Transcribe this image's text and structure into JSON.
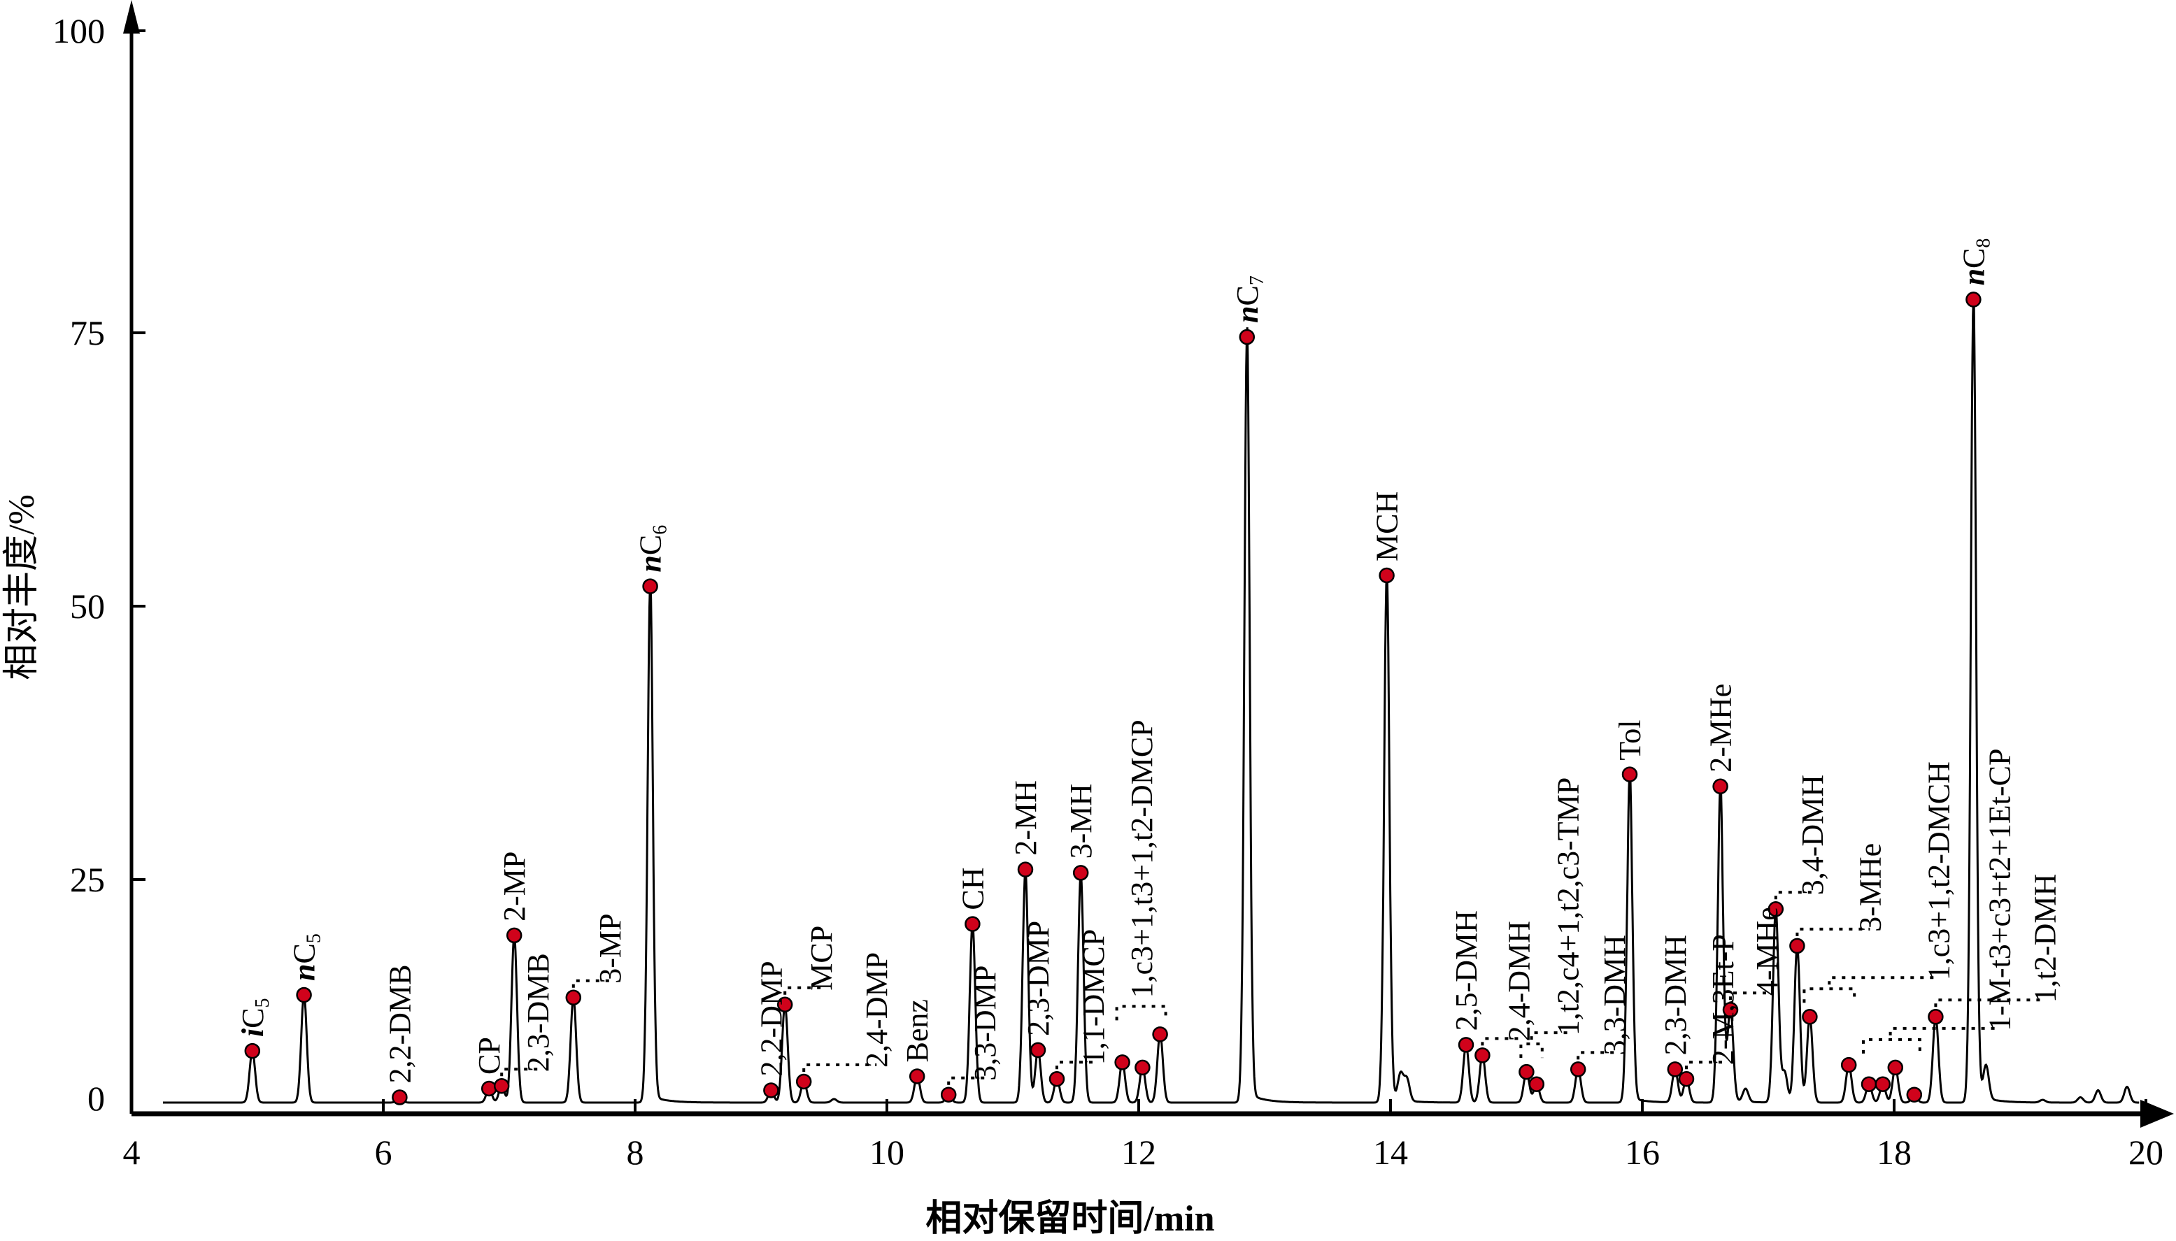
{
  "chart_data": {
    "type": "line",
    "title": "",
    "xlabel": "相对保留时间/min",
    "ylabel": "相对丰度/%",
    "xlim": [
      4,
      20
    ],
    "ylim": [
      0,
      100
    ],
    "x_ticks": [
      4,
      6,
      8,
      10,
      12,
      14,
      16,
      18,
      20
    ],
    "y_ticks": [
      0,
      25,
      50,
      75,
      100
    ],
    "grid": false,
    "marker_color": "#d0021b",
    "line_color": "#000000",
    "peaks": [
      {
        "name": "iC5",
        "time": 4.96,
        "value": 5.9
      },
      {
        "name": "nC5",
        "time": 5.37,
        "value": 12.3
      },
      {
        "name": "2,2-DMB",
        "time": 6.13,
        "value": 0.6
      },
      {
        "name": "CP",
        "time": 6.84,
        "value": 1.6
      },
      {
        "name": "2,3-DMB",
        "time": 6.94,
        "value": 1.9
      },
      {
        "name": "2-MP",
        "time": 7.04,
        "value": 19.1
      },
      {
        "name": "3-MP",
        "time": 7.51,
        "value": 12.0
      },
      {
        "name": "nC6",
        "time": 8.12,
        "value": 52.2
      },
      {
        "name": "2,2-DMP",
        "time": 9.08,
        "value": 1.4
      },
      {
        "name": "MCP",
        "time": 9.19,
        "value": 11.2
      },
      {
        "name": "2,4-DMP",
        "time": 9.34,
        "value": 2.4
      },
      {
        "name": "Benz",
        "time": 10.24,
        "value": 3.0
      },
      {
        "name": "3,3-DMP",
        "time": 10.49,
        "value": 0.9
      },
      {
        "name": "CH",
        "time": 10.68,
        "value": 20.4
      },
      {
        "name": "2-MH",
        "time": 11.1,
        "value": 26.3
      },
      {
        "name": "2,3-DMP",
        "time": 11.2,
        "value": 6.0
      },
      {
        "name": "1,1-DMCP",
        "time": 11.35,
        "value": 2.7
      },
      {
        "name": "3-MH",
        "time": 11.54,
        "value": 26.0
      },
      {
        "name": "1,c3-DMCP",
        "time": 11.87,
        "value": 4.6
      },
      {
        "name": "1,t3-DMCP",
        "time": 12.03,
        "value": 4.0
      },
      {
        "name": "1,t2-DMCP",
        "time": 12.17,
        "value": 7.8
      },
      {
        "name": "nC7",
        "time": 12.86,
        "value": 75.0
      },
      {
        "name": "MCH",
        "time": 13.97,
        "value": 53.2
      },
      {
        "name": "2,5-DMH",
        "time": 14.6,
        "value": 6.6
      },
      {
        "name": "2,4-DMH",
        "time": 14.73,
        "value": 5.4
      },
      {
        "name": "1,t2,c4-TMP",
        "time": 15.08,
        "value": 3.5
      },
      {
        "name": "1,t2,c3-TMP",
        "time": 15.16,
        "value": 2.1
      },
      {
        "name": "3,3-DMH",
        "time": 15.49,
        "value": 3.8
      },
      {
        "name": "Tol",
        "time": 15.9,
        "value": 35.0
      },
      {
        "name": "2,3-DMH",
        "time": 16.26,
        "value": 3.8
      },
      {
        "name": "2-M,3Et-P",
        "time": 16.35,
        "value": 2.7
      },
      {
        "name": "2-MHe",
        "time": 16.62,
        "value": 33.9
      },
      {
        "name": "4-MHe",
        "time": 16.7,
        "value": 10.6
      },
      {
        "name": "3,4-DMH",
        "time": 17.06,
        "value": 22.1
      },
      {
        "name": "3-MHe",
        "time": 17.23,
        "value": 17.9
      },
      {
        "name": "1,c3-DMCH",
        "time": 17.33,
        "value": 9.8
      },
      {
        "name": "1,t2-DMCH",
        "time": 17.64,
        "value": 4.3
      },
      {
        "name": "1-M-t3-EtCP",
        "time": 17.8,
        "value": 2.1
      },
      {
        "name": "1-M-c3-EtCP",
        "time": 17.91,
        "value": 2.1
      },
      {
        "name": "1-M-t2-EtCP",
        "time": 18.01,
        "value": 4.0
      },
      {
        "name": "1Et-CP",
        "time": 18.16,
        "value": 0.9
      },
      {
        "name": "1,t2-DMH",
        "time": 18.33,
        "value": 9.8
      },
      {
        "name": "nC8",
        "time": 18.63,
        "value": 78.1
      }
    ],
    "minor_peaks": [
      {
        "time": 9.58,
        "value": 0.4
      },
      {
        "time": 14.08,
        "value": 3.0
      },
      {
        "time": 14.13,
        "value": 2.5
      },
      {
        "time": 16.82,
        "value": 1.5
      },
      {
        "time": 17.13,
        "value": 3.5
      },
      {
        "time": 18.73,
        "value": 3.8
      },
      {
        "time": 19.18,
        "value": 0.3
      },
      {
        "time": 19.48,
        "value": 0.6
      },
      {
        "time": 19.62,
        "value": 1.4
      },
      {
        "time": 19.85,
        "value": 1.8
      }
    ],
    "labels": [
      {
        "text": "iC5",
        "peaks": [
          0
        ]
      },
      {
        "text": "nC5",
        "peaks": [
          1
        ]
      },
      {
        "text": "2,2-DMB",
        "peaks": [
          2
        ]
      },
      {
        "text": "CP",
        "peaks": [
          3
        ]
      },
      {
        "text": "2,3-DMB",
        "peaks": [
          4
        ]
      },
      {
        "text": "2-MP",
        "peaks": [
          5
        ]
      },
      {
        "text": "3-MP",
        "peaks": [
          6
        ]
      },
      {
        "text": "nC6",
        "peaks": [
          7
        ]
      },
      {
        "text": "2,2-DMP",
        "peaks": [
          8
        ]
      },
      {
        "text": "MCP",
        "peaks": [
          9
        ]
      },
      {
        "text": "2,4-DMP",
        "peaks": [
          10
        ]
      },
      {
        "text": "Benz",
        "peaks": [
          11
        ]
      },
      {
        "text": "3,3-DMP",
        "peaks": [
          12
        ]
      },
      {
        "text": "CH",
        "peaks": [
          13
        ]
      },
      {
        "text": "2-MH",
        "peaks": [
          14
        ]
      },
      {
        "text": "2,3-DMP",
        "peaks": [
          15
        ]
      },
      {
        "text": "1,1-DMCP",
        "peaks": [
          16
        ]
      },
      {
        "text": "3-MH",
        "peaks": [
          17
        ]
      },
      {
        "text": "1,c3+1,t3+1,t2-DMCP",
        "peaks": [
          18,
          19,
          20
        ]
      },
      {
        "text": "nC7",
        "peaks": [
          21
        ]
      },
      {
        "text": "MCH",
        "peaks": [
          22
        ]
      },
      {
        "text": "2,5-DMH",
        "peaks": [
          23
        ]
      },
      {
        "text": "2,4-DMH",
        "peaks": [
          24
        ]
      },
      {
        "text": "1,t2,c4+1,t2,c3-TMP",
        "peaks": [
          25,
          26
        ]
      },
      {
        "text": "3,3-DMH",
        "peaks": [
          27
        ]
      },
      {
        "text": "Tol",
        "peaks": [
          28
        ]
      },
      {
        "text": "2,3-DMH",
        "peaks": [
          29
        ]
      },
      {
        "text": "2-M,3Et-P",
        "peaks": [
          30
        ]
      },
      {
        "text": "2-MHe",
        "peaks": [
          31
        ]
      },
      {
        "text": "4-MHe",
        "peaks": [
          32
        ]
      },
      {
        "text": "3,4-DMH",
        "peaks": [
          33
        ]
      },
      {
        "text": "3-MHe",
        "peaks": [
          34
        ]
      },
      {
        "text": "1,c3+1,t2-DMCH",
        "peaks": [
          35,
          36
        ]
      },
      {
        "text": "1-M-t3+c3+t2+1Et-CP",
        "peaks": [
          37,
          38,
          39,
          40
        ]
      },
      {
        "text": "1,t2-DMH",
        "peaks": [
          41
        ]
      },
      {
        "text": "nC8",
        "peaks": [
          42
        ]
      }
    ]
  }
}
